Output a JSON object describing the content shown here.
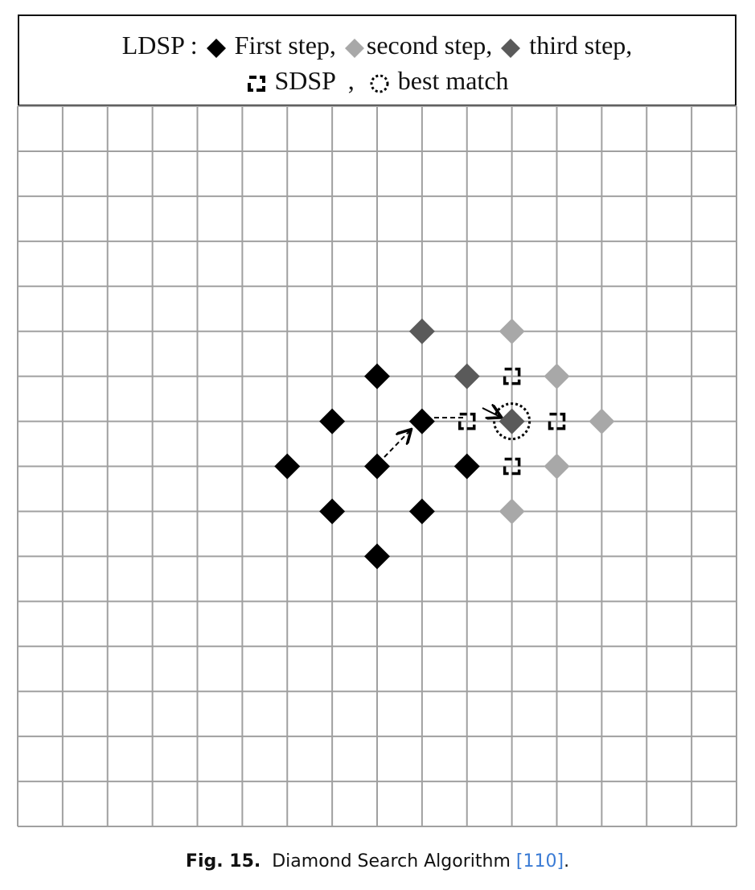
{
  "legend": {
    "prefix": "LDSP :",
    "first_label": "First step,",
    "second_label": "second step,",
    "third_label": "third step,",
    "sdsp_label": "SDSP",
    "sep": ",",
    "best_label": "best match"
  },
  "colors": {
    "first": "#000000",
    "second": "#a8a8a8",
    "third": "#5a5a5a",
    "grid": "#a0a0a0"
  },
  "grid": {
    "cols": 16,
    "rows": 16
  },
  "points": {
    "first_step": [
      [
        8,
        6
      ],
      [
        7,
        7
      ],
      [
        9,
        7
      ],
      [
        6,
        8
      ],
      [
        8,
        8
      ],
      [
        10,
        8
      ],
      [
        7,
        9
      ],
      [
        9,
        9
      ],
      [
        8,
        10
      ]
    ],
    "second_step": [
      [
        11,
        5
      ],
      [
        12,
        6
      ],
      [
        13,
        7
      ],
      [
        12,
        8
      ],
      [
        11,
        9
      ]
    ],
    "third_step": [
      [
        9,
        5
      ],
      [
        10,
        6
      ],
      [
        11,
        7
      ]
    ],
    "sdsp": [
      [
        11,
        6
      ],
      [
        10,
        7
      ],
      [
        12,
        7
      ],
      [
        11,
        8
      ]
    ],
    "best_match": [
      11,
      7
    ]
  },
  "caption": {
    "fig": "Fig. 15.",
    "text": "Diamond Search Algorithm",
    "ref": "[110]",
    "end": "."
  }
}
